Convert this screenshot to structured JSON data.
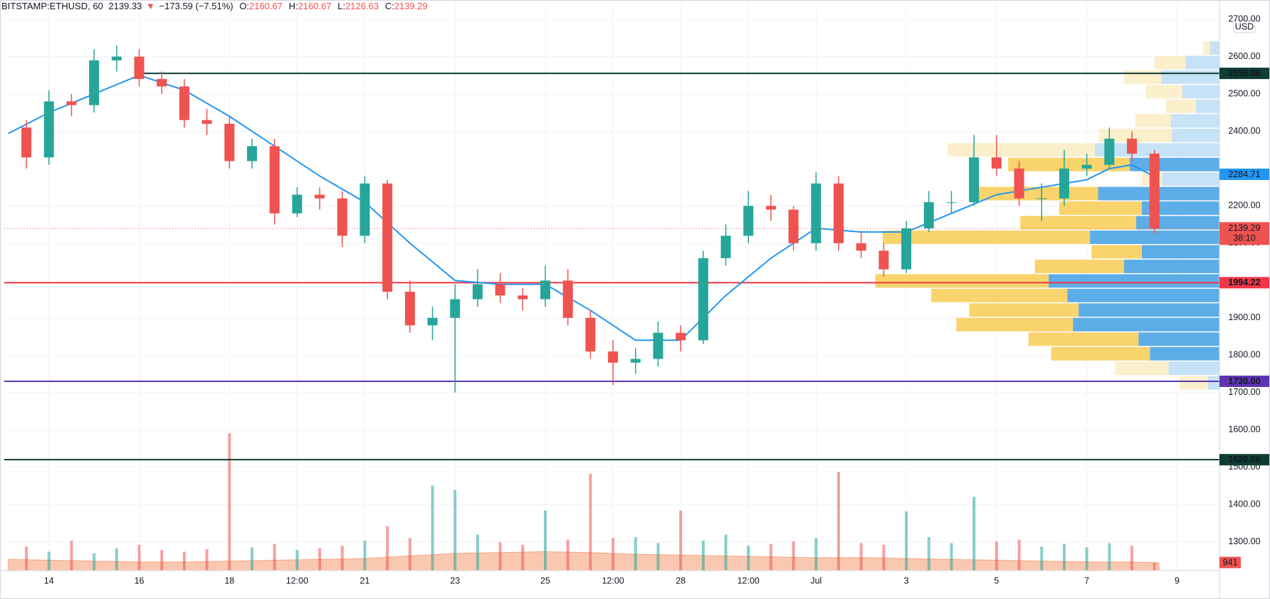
{
  "header": {
    "symbol": "BITSTAMP:ETHUSD, 60",
    "last": 2139.33,
    "arrow": "▼",
    "change": "−173.59 (−7.51%)",
    "o_label": "O:",
    "o": 2160.67,
    "h_label": "H:",
    "h": 2160.67,
    "l_label": "L:",
    "l": 2126.63,
    "c_label": "C:",
    "c": 2139.29
  },
  "chart_data": {
    "type": "candlestick",
    "currency": "USD",
    "xlim": [
      13.01,
      39.94
    ],
    "ylim": [
      1223,
      2704
    ],
    "xticks": [
      14,
      16,
      18,
      {
        "value": 19.5,
        "label": "12:00"
      },
      21,
      23,
      25,
      {
        "value": 26.5,
        "label": "12:00"
      },
      28,
      {
        "value": 29.5,
        "label": "12:00"
      },
      {
        "value": 31,
        "label": "Jul"
      },
      {
        "value": 33,
        "label": "3"
      },
      {
        "value": 35,
        "label": "5"
      },
      {
        "value": 37,
        "label": "7"
      },
      {
        "value": 39,
        "label": "9"
      }
    ],
    "yticks": [
      {
        "value": 2700,
        "label": "2700.00"
      },
      {
        "value": 2600,
        "label": "2600.00"
      },
      {
        "value": 2500,
        "label": "2500.00"
      },
      {
        "value": 2400,
        "label": "2400.00"
      },
      {
        "value": 2200,
        "label": "2200.00"
      },
      {
        "value": 2100,
        "label": "2100.00"
      },
      {
        "value": 1900,
        "label": "1900.00"
      },
      {
        "value": 1800,
        "label": "1800.00"
      },
      {
        "value": 1700,
        "label": "1700.00"
      },
      {
        "value": 1600,
        "label": "1600.00"
      },
      {
        "value": 1500,
        "label": "1500.00"
      },
      {
        "value": 1400,
        "label": "1400.00"
      },
      {
        "value": 1300,
        "label": "1300.00"
      }
    ],
    "grid": true,
    "up_color": "#26a69a",
    "down_color": "#ef5350",
    "x": [
      13.5,
      14,
      14.5,
      15,
      15.5,
      16,
      16.5,
      17,
      17.5,
      18,
      18.5,
      19,
      19.5,
      20,
      20.5,
      21,
      21.5,
      22,
      22.5,
      23,
      23.5,
      24,
      24.5,
      25,
      25.5,
      26,
      26.5,
      27,
      27.5,
      28,
      28.5,
      29,
      29.5,
      30,
      30.5,
      31,
      31.5,
      32,
      32.5,
      33,
      33.5,
      34,
      34.5,
      35,
      35.5,
      36,
      36.5,
      37,
      37.5,
      38,
      38.5
    ],
    "open": [
      2410,
      2330,
      2480,
      2470,
      2590,
      2600,
      2540,
      2520,
      2430,
      2420,
      2320,
      2360,
      2180,
      2230,
      2220,
      2120,
      2260,
      1970,
      1880,
      1900,
      1950,
      1990,
      1960,
      1950,
      2000,
      1900,
      1810,
      1780,
      1790,
      1860,
      1840,
      2060,
      2120,
      2200,
      2190,
      2100,
      2260,
      2100,
      2080,
      2030,
      2140,
      2210,
      2210,
      2330,
      2300,
      2220,
      2220,
      2300,
      2310,
      2380,
      2340
    ],
    "high": [
      2430,
      2510,
      2500,
      2620,
      2630,
      2620,
      2560,
      2540,
      2460,
      2440,
      2380,
      2380,
      2250,
      2250,
      2240,
      2280,
      2270,
      2000,
      1930,
      1990,
      2030,
      2020,
      1980,
      2040,
      2030,
      1920,
      1840,
      1820,
      1890,
      1880,
      2080,
      2150,
      2240,
      2230,
      2200,
      2290,
      2280,
      2130,
      2100,
      2160,
      2240,
      2240,
      2390,
      2390,
      2320,
      2260,
      2350,
      2340,
      2410,
      2400,
      2350
    ],
    "low": [
      2300,
      2310,
      2440,
      2450,
      2560,
      2520,
      2500,
      2410,
      2390,
      2300,
      2300,
      2150,
      2170,
      2190,
      2090,
      2100,
      1950,
      1860,
      1840,
      1700,
      1930,
      1940,
      1920,
      1930,
      1880,
      1790,
      1720,
      1750,
      1770,
      1810,
      1830,
      2040,
      2100,
      2160,
      2080,
      2080,
      2080,
      2060,
      2010,
      2020,
      2130,
      2180,
      2200,
      2280,
      2200,
      2160,
      2200,
      2280,
      2300,
      2320,
      2126
    ],
    "close": [
      2330,
      2480,
      2470,
      2590,
      2600,
      2540,
      2520,
      2430,
      2420,
      2320,
      2360,
      2180,
      2230,
      2220,
      2120,
      2260,
      1970,
      1880,
      1900,
      1950,
      1990,
      1960,
      1950,
      2000,
      1900,
      1810,
      1780,
      1790,
      1860,
      1840,
      2060,
      2120,
      2200,
      2190,
      2100,
      2260,
      2100,
      2080,
      2030,
      2140,
      2210,
      2210,
      2330,
      2300,
      2220,
      2220,
      2300,
      2310,
      2380,
      2340,
      2139.29
    ],
    "countdown": "38:10",
    "ma": {
      "color": "#2196f3",
      "x": [
        13.1,
        14,
        15,
        16,
        17,
        18,
        19,
        20,
        21,
        22,
        23,
        24,
        25,
        26,
        27,
        28,
        29,
        30,
        31,
        32,
        33,
        34,
        35,
        36,
        37,
        37.5,
        38,
        38.4
      ],
      "values": [
        2394,
        2450,
        2500,
        2550,
        2510,
        2440,
        2360,
        2280,
        2210,
        2100,
        2000,
        1990,
        1990,
        1920,
        1840,
        1840,
        1960,
        2060,
        2140,
        2130,
        2130,
        2180,
        2230,
        2250,
        2270,
        2300,
        2310,
        2284.71
      ]
    },
    "levels": [
      {
        "price": 2555.06,
        "color": "#0f3d33",
        "from": 16
      },
      {
        "price": 1994.22,
        "color": "#f23645"
      },
      {
        "price": {
          "value": 1730,
          "label": "1730.00"
        },
        "color": "#5e35b1"
      },
      {
        "price": {
          "value": 1520,
          "label": "1520.00"
        },
        "color": "#0f3d33"
      }
    ],
    "volume": {
      "ylim": [
        0,
        20000
      ],
      "values": [
        2800,
        2200,
        3500,
        2000,
        2600,
        3000,
        2400,
        2200,
        2500,
        16000,
        2700,
        3100,
        2400,
        2600,
        2900,
        3500,
        5200,
        3800,
        9900,
        9400,
        4200,
        3300,
        3000,
        7000,
        3600,
        11300,
        3800,
        3900,
        3200,
        7000,
        3500,
        4200,
        2900,
        3100,
        3400,
        3800,
        11500,
        3200,
        3000,
        6900,
        3900,
        3200,
        8600,
        3400,
        3600,
        2800,
        3100,
        2700,
        3200,
        2900,
        941
      ],
      "ma_color": "#f7a47c",
      "ma_x": [
        13.1,
        14,
        15,
        16,
        17,
        18,
        19,
        20,
        21,
        22,
        23,
        24,
        25,
        26,
        27,
        28,
        29,
        30,
        31,
        32,
        33,
        34,
        35,
        36,
        37,
        38,
        38.6
      ],
      "ma_values": [
        1300,
        1200,
        1100,
        1000,
        1000,
        1100,
        1200,
        1300,
        1400,
        1700,
        2000,
        2100,
        2200,
        2100,
        1900,
        1800,
        1700,
        1600,
        1500,
        1500,
        1400,
        1300,
        1200,
        1100,
        1000,
        1000,
        900
      ]
    },
    "profile": {
      "xlim": [
        0,
        1501
      ],
      "up_color": "#5dade8",
      "down_color": "#f9d36b",
      "up_color_outside": "#c6e2f7",
      "down_color_outside": "#fcefcc",
      "bins": [
        1705,
        1744,
        1783,
        1822,
        1861,
        1900,
        1939,
        1978,
        2017,
        2056,
        2095,
        2134,
        2173,
        2212,
        2251,
        2290,
        2329,
        2368,
        2407,
        2446,
        2485,
        2524,
        2563,
        2602,
        2641
      ],
      "up": [
        14,
        63,
        86,
        100,
        181,
        174,
        188,
        211,
        118,
        96,
        160,
        103,
        96,
        150,
        71,
        111,
        154,
        59,
        60,
        29,
        46,
        72,
        42,
        12
      ],
      "down": [
        35,
        66,
        122,
        136,
        144,
        135,
        168,
        214,
        110,
        62,
        256,
        143,
        102,
        148,
        25,
        150,
        182,
        90,
        44,
        37,
        45,
        46,
        38,
        8
      ],
      "value_area": [
        false,
        false,
        true,
        true,
        true,
        true,
        true,
        true,
        true,
        true,
        true,
        true,
        true,
        true,
        false,
        true,
        false,
        false,
        false,
        false,
        false,
        false,
        false,
        false
      ]
    }
  }
}
